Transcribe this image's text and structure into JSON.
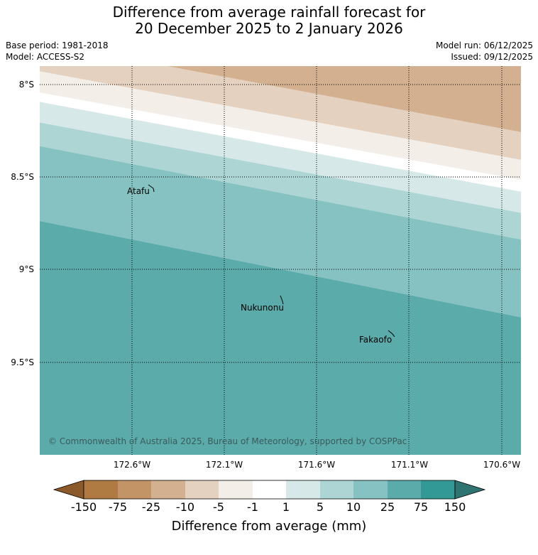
{
  "title": {
    "line1": "Difference from average rainfall forecast for",
    "line2": "20 December 2025 to 2 January 2026"
  },
  "meta": {
    "base_period": "Base period: 1981-2018",
    "model": "Model: ACCESS-S2",
    "model_run": "Model run: 06/12/2025",
    "issued": "Issued: 09/12/2025"
  },
  "map": {
    "lat_labels": [
      "8°S",
      "8.5°S",
      "9°S",
      "9.5°S"
    ],
    "lon_labels": [
      "172.6°W",
      "172.1°W",
      "171.6°W",
      "171.1°W",
      "170.6°W"
    ],
    "places": [
      "Atafu",
      "Nukunonu",
      "Fakaofo"
    ],
    "copyright": "© Commonwealth of Australia 2025, Bureau of Meteorology, supported by COSPPac"
  },
  "colorbar": {
    "title": "Difference from average (mm)",
    "ticks": [
      "-150",
      "-75",
      "-25",
      "-10",
      "-5",
      "-1",
      "1",
      "5",
      "10",
      "25",
      "75",
      "150"
    ],
    "colors": {
      "lt_neg150": "#8c5a2a",
      "neg150_neg75": "#b07a43",
      "neg75_neg25": "#c39466",
      "neg25_neg10": "#d3b08f",
      "neg10_neg5": "#e5d1c0",
      "neg5_neg1": "#f3eee8",
      "neg1_1": "#ffffff",
      "1_5": "#d6e8e7",
      "5_10": "#acd5d4",
      "10_25": "#86c2c1",
      "25_75": "#5babab",
      "75_150": "#339996",
      "gt_150": "#2f7470"
    }
  }
}
